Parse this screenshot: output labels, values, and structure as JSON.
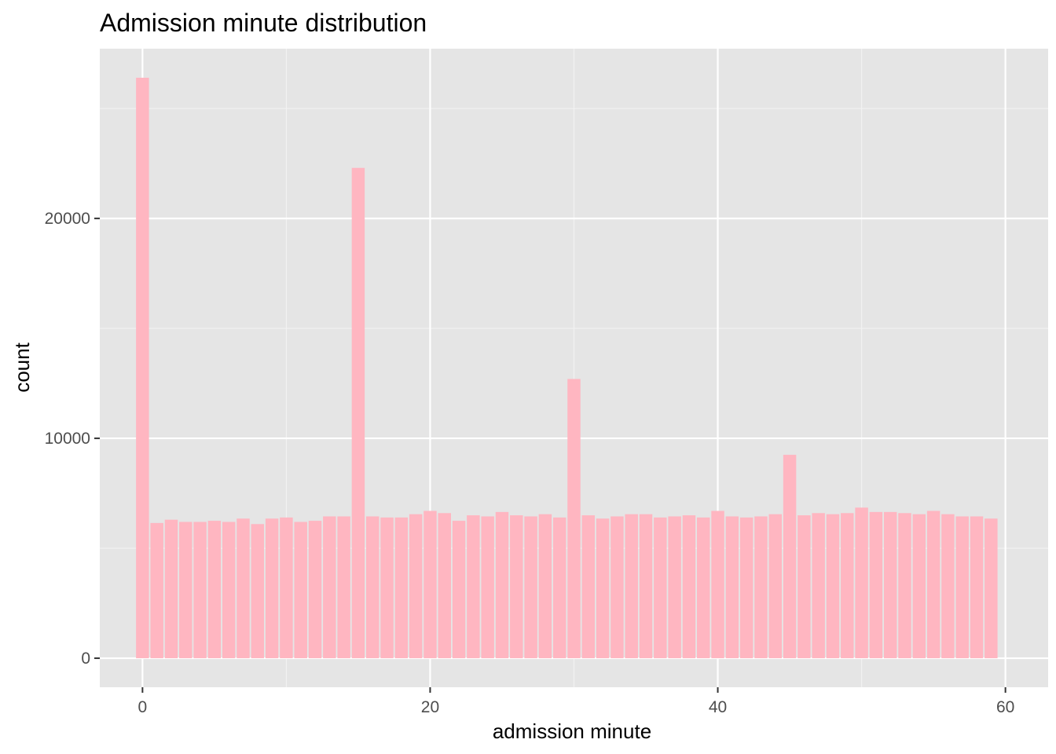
{
  "chart_data": {
    "type": "bar",
    "title": "Admission minute distribution",
    "xlabel": "admission minute",
    "ylabel": "count",
    "xlim": [
      -2.97,
      62.97
    ],
    "ylim": [
      -1320,
      27720
    ],
    "x_ticks": [
      0,
      20,
      40,
      60
    ],
    "y_ticks": [
      0,
      10000,
      20000
    ],
    "x": [
      0,
      1,
      2,
      3,
      4,
      5,
      6,
      7,
      8,
      9,
      10,
      11,
      12,
      13,
      14,
      15,
      16,
      17,
      18,
      19,
      20,
      21,
      22,
      23,
      24,
      25,
      26,
      27,
      28,
      29,
      30,
      31,
      32,
      33,
      34,
      35,
      36,
      37,
      38,
      39,
      40,
      41,
      42,
      43,
      44,
      45,
      46,
      47,
      48,
      49,
      50,
      51,
      52,
      53,
      54,
      55,
      56,
      57,
      58,
      59
    ],
    "values": [
      26400,
      6150,
      6300,
      6200,
      6200,
      6250,
      6200,
      6350,
      6100,
      6350,
      6400,
      6200,
      6250,
      6450,
      6450,
      22300,
      6450,
      6400,
      6400,
      6550,
      6700,
      6600,
      6250,
      6500,
      6450,
      6650,
      6500,
      6450,
      6550,
      6400,
      12700,
      6500,
      6350,
      6450,
      6550,
      6550,
      6400,
      6450,
      6500,
      6400,
      6700,
      6450,
      6400,
      6450,
      6550,
      9250,
      6500,
      6600,
      6550,
      6600,
      6850,
      6650,
      6650,
      6600,
      6550,
      6700,
      6550,
      6450,
      6450,
      6350
    ],
    "grid": true,
    "legend": "none",
    "colors": {
      "bar": "#ffb6c1",
      "panel": "#e5e5e5",
      "grid_major": "#ffffff",
      "grid_minor": "#f2f2f2"
    }
  }
}
